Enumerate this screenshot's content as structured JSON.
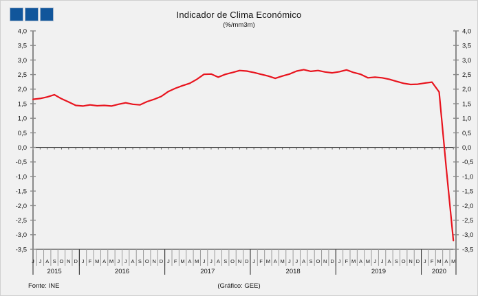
{
  "title": "Indicador de Clima Económico",
  "subtitle": "(%/mm3m)",
  "footer": {
    "source": "Fonte: INE",
    "credit": "(Gráfico: GEE)"
  },
  "logo": {
    "icon": "three-blue-squares",
    "square_color": "#11569b"
  },
  "chart_data": {
    "type": "line",
    "title": "Indicador de Clima Económico",
    "subtitle": "(%/mm3m)",
    "ylim": [
      -3.5,
      4.0
    ],
    "ytick_step": 0.5,
    "y_axis_sides": "both",
    "decimal_separator": ",",
    "grid": false,
    "legend": false,
    "line_color": "#e8141e",
    "x_months": [
      "J",
      "J",
      "A",
      "S",
      "O",
      "N",
      "D",
      "J",
      "F",
      "M",
      "A",
      "M",
      "J",
      "J",
      "A",
      "S",
      "O",
      "N",
      "D",
      "J",
      "F",
      "M",
      "A",
      "M",
      "J",
      "J",
      "A",
      "S",
      "O",
      "N",
      "D",
      "J",
      "F",
      "M",
      "A",
      "M",
      "J",
      "J",
      "A",
      "S",
      "O",
      "N",
      "D",
      "J",
      "F",
      "M",
      "A",
      "M",
      "J",
      "J",
      "A",
      "S",
      "O",
      "N",
      "D",
      "J",
      "F",
      "M",
      "A",
      "M"
    ],
    "years": [
      {
        "label": "2015",
        "months": 7
      },
      {
        "label": "2016",
        "months": 12
      },
      {
        "label": "2017",
        "months": 12
      },
      {
        "label": "2018",
        "months": 12
      },
      {
        "label": "2019",
        "months": 12
      },
      {
        "label": "2020",
        "months": 5
      }
    ],
    "series": [
      {
        "name": "Indicador de Clima Económico",
        "color": "#e8141e",
        "start": "2015-06",
        "end": "2020-05",
        "values": [
          1.65,
          1.68,
          1.73,
          1.81,
          1.67,
          1.56,
          1.44,
          1.42,
          1.46,
          1.43,
          1.44,
          1.42,
          1.48,
          1.53,
          1.48,
          1.46,
          1.57,
          1.65,
          1.75,
          1.92,
          2.03,
          2.12,
          2.2,
          2.34,
          2.51,
          2.52,
          2.41,
          2.51,
          2.57,
          2.64,
          2.62,
          2.57,
          2.51,
          2.45,
          2.37,
          2.45,
          2.52,
          2.62,
          2.67,
          2.61,
          2.64,
          2.59,
          2.56,
          2.6,
          2.66,
          2.57,
          2.51,
          2.39,
          2.41,
          2.39,
          2.34,
          2.27,
          2.2,
          2.16,
          2.17,
          2.21,
          2.24,
          1.9,
          -0.7,
          -3.2
        ]
      }
    ]
  }
}
